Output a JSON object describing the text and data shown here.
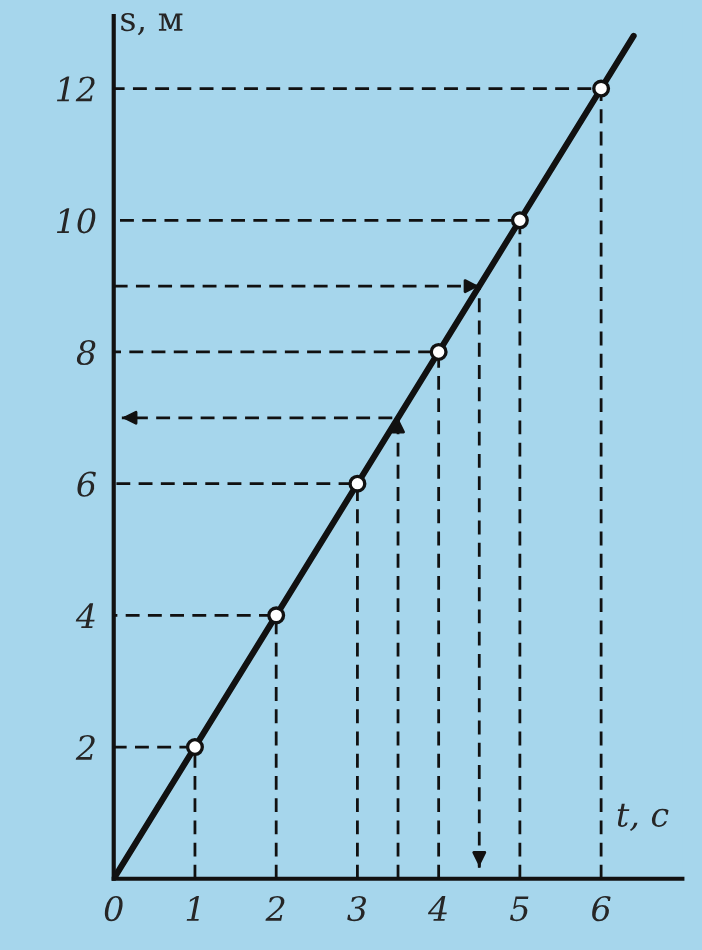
{
  "chart_data": {
    "type": "line",
    "xlabel": "t, с",
    "ylabel": "s, м",
    "xlim": [
      0,
      7
    ],
    "ylim": [
      0,
      13.1
    ],
    "xticks": [
      0,
      1,
      2,
      3,
      4,
      5,
      6
    ],
    "yticks": [
      2,
      4,
      6,
      8,
      10,
      12
    ],
    "grid": false,
    "legend": false,
    "series": [
      {
        "color": "#111111",
        "x": [
          0,
          6.4
        ],
        "values": [
          0,
          12.8
        ],
        "line_style": "solid",
        "marker": "none"
      },
      {
        "type": "scatter",
        "color": "#111111",
        "x": [
          1,
          2,
          3,
          4,
          5,
          6
        ],
        "values": [
          2,
          4,
          6,
          8,
          10,
          12
        ],
        "marker": "circle"
      },
      {
        "color": "#111111",
        "x": [
          1,
          1,
          0
        ],
        "values": [
          0,
          2,
          2
        ],
        "line_style": "dashed",
        "marker": "none"
      },
      {
        "color": "#111111",
        "x": [
          2,
          2,
          0
        ],
        "values": [
          0,
          4,
          4
        ],
        "line_style": "dashed",
        "marker": "none"
      },
      {
        "color": "#111111",
        "x": [
          3,
          3,
          0
        ],
        "values": [
          0,
          6,
          6
        ],
        "line_style": "dashed",
        "marker": "none"
      },
      {
        "color": "#111111",
        "x": [
          4,
          4,
          0
        ],
        "values": [
          0,
          8,
          8
        ],
        "line_style": "dashed",
        "marker": "none"
      },
      {
        "color": "#111111",
        "x": [
          5,
          5,
          0
        ],
        "values": [
          0,
          10,
          10
        ],
        "line_style": "dashed",
        "marker": "none"
      },
      {
        "color": "#111111",
        "x": [
          6,
          6,
          0
        ],
        "values": [
          0,
          12,
          12
        ],
        "line_style": "dashed",
        "marker": "none"
      },
      {
        "color": "#111111",
        "x": [
          3.5,
          3.5,
          0.1
        ],
        "values": [
          0,
          7,
          7
        ],
        "line_style": "dashed",
        "marker": "none"
      },
      {
        "color": "#111111",
        "x": [
          0,
          4.5,
          4.5
        ],
        "values": [
          9,
          9,
          0.1
        ],
        "line_style": "dashed",
        "marker": "none"
      }
    ]
  }
}
